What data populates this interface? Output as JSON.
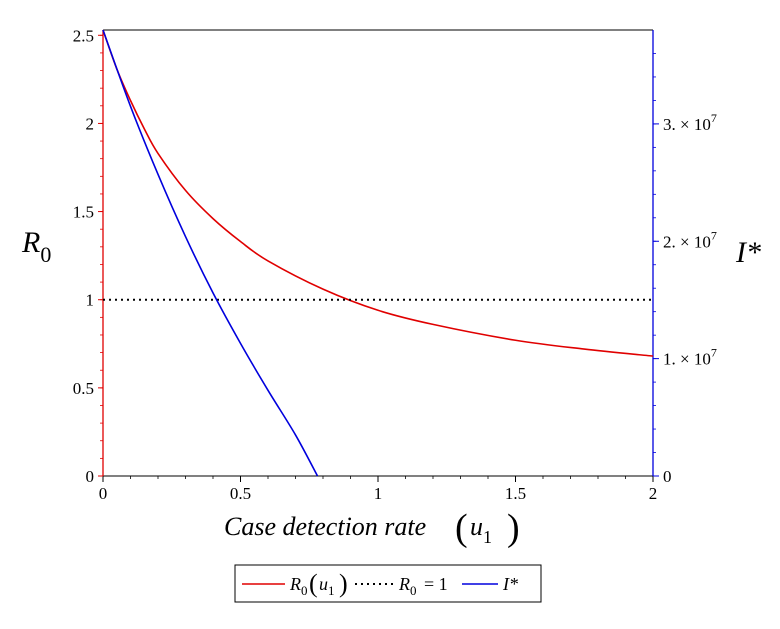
{
  "chart_data": {
    "type": "line",
    "xlabel": {
      "text": "Case detection rate",
      "var": "u",
      "sub": "1"
    },
    "ylabel_left": {
      "main": "R",
      "sub": "0"
    },
    "ylabel_right": "I*",
    "xlim": [
      0,
      2
    ],
    "ylim_left": [
      0,
      2.53
    ],
    "ylim_right": [
      0,
      38000000
    ],
    "x_ticks": [
      "0",
      "0.5",
      "1",
      "1.5",
      "2"
    ],
    "x_tick_values": [
      0,
      0.5,
      1,
      1.5,
      2
    ],
    "y_left_ticks": [
      "0",
      "0.5",
      "1",
      "1.5",
      "2",
      "2.5"
    ],
    "y_left_tick_values": [
      0,
      0.5,
      1,
      1.5,
      2,
      2.5
    ],
    "y_right_ticks": [
      {
        "value": 0,
        "label": "0"
      },
      {
        "value": 10000000,
        "label": "1. × 10",
        "exp": "7"
      },
      {
        "value": 20000000,
        "label": "2. × 10",
        "exp": "7"
      },
      {
        "value": 30000000,
        "label": "3. × 10",
        "exp": "7"
      }
    ],
    "grid": false,
    "legend_position": "bottom",
    "series": [
      {
        "key": "r0",
        "legend_main": "R",
        "legend_sub": "0",
        "legend_arg": "u",
        "legend_arg_sub": "1",
        "axis": "left",
        "color": "#e00000",
        "style": "solid",
        "x": [
          0,
          0.05,
          0.1,
          0.15,
          0.2,
          0.3,
          0.4,
          0.5,
          0.6,
          0.8,
          1.0,
          1.2,
          1.5,
          1.75,
          2.0
        ],
        "y": [
          2.53,
          2.31,
          2.13,
          1.97,
          1.83,
          1.62,
          1.46,
          1.33,
          1.22,
          1.06,
          0.94,
          0.86,
          0.77,
          0.72,
          0.68
        ]
      },
      {
        "key": "threshold",
        "legend_main": "R",
        "legend_sub": "0",
        "legend_eq": "= 1",
        "axis": "left",
        "color": "#000000",
        "style": "dotted",
        "x": [
          0,
          2
        ],
        "y": [
          1,
          1
        ]
      },
      {
        "key": "istar",
        "legend_main": "I*",
        "axis": "right",
        "color": "#0000dd",
        "style": "solid",
        "x": [
          0,
          0.1,
          0.2,
          0.3,
          0.4,
          0.5,
          0.6,
          0.7,
          0.78
        ],
        "y": [
          38000000,
          31500000,
          25700000,
          20400000,
          15600000,
          11300000,
          7300000,
          3500000,
          0
        ]
      }
    ]
  }
}
